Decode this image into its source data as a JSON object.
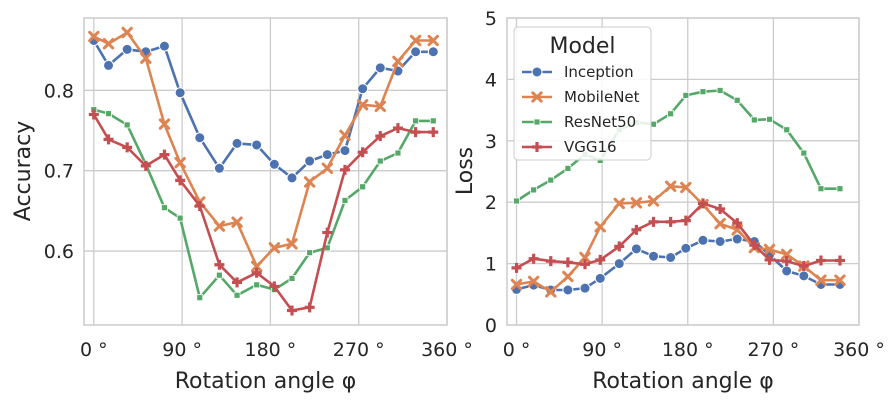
{
  "chart_data": [
    {
      "type": "line",
      "xlabel": "Rotation angle φ",
      "ylabel": "Accuracy",
      "xlim": [
        -10,
        360
      ],
      "ylim": [
        0.508,
        0.89
      ],
      "xticks": [
        0,
        90,
        180,
        270,
        360
      ],
      "xtick_labels": [
        "0 °",
        "90 °",
        "180 °",
        "270 °",
        "360 °"
      ],
      "yticks": [
        0.6,
        0.7,
        0.8
      ],
      "ytick_labels": [
        "0.6",
        "0.7",
        "0.8"
      ],
      "grid": true,
      "x": [
        0,
        15,
        34,
        53,
        72,
        88,
        108,
        128,
        146,
        166,
        184,
        202,
        220,
        238,
        256,
        274,
        292,
        310,
        328,
        346
      ],
      "series": [
        {
          "name": "Inception",
          "color": "#4c72b0",
          "marker": "circle",
          "values": [
            0.862,
            0.831,
            0.851,
            0.848,
            0.855,
            0.797,
            0.741,
            0.703,
            0.734,
            0.732,
            0.708,
            0.691,
            0.712,
            0.72,
            0.725,
            0.802,
            0.828,
            0.824,
            0.848,
            0.848
          ]
        },
        {
          "name": "MobileNet",
          "color": "#dd8452",
          "marker": "x",
          "values": [
            0.867,
            0.858,
            0.872,
            0.84,
            0.758,
            0.71,
            0.661,
            0.631,
            0.636,
            0.581,
            0.604,
            0.609,
            0.686,
            0.703,
            0.744,
            0.782,
            0.78,
            0.836,
            0.862,
            0.862
          ]
        },
        {
          "name": "ResNet50",
          "color": "#55a868",
          "marker": "square",
          "values": [
            0.776,
            0.771,
            0.757,
            0.708,
            0.654,
            0.641,
            0.542,
            0.57,
            0.545,
            0.558,
            0.552,
            0.566,
            0.598,
            0.604,
            0.663,
            0.68,
            0.712,
            0.722,
            0.762,
            0.762
          ]
        },
        {
          "name": "VGG16",
          "color": "#c44e52",
          "marker": "plus",
          "values": [
            0.77,
            0.739,
            0.729,
            0.706,
            0.72,
            0.688,
            0.656,
            0.583,
            0.561,
            0.573,
            0.556,
            0.526,
            0.53,
            0.623,
            0.701,
            0.723,
            0.743,
            0.753,
            0.748,
            0.748
          ]
        }
      ]
    },
    {
      "type": "line",
      "xlabel": "Rotation angle φ",
      "ylabel": "Loss",
      "xlim": [
        -10,
        360
      ],
      "ylim": [
        0,
        5
      ],
      "xticks": [
        0,
        90,
        180,
        270,
        360
      ],
      "xtick_labels": [
        "0 °",
        "90 °",
        "180 °",
        "270 °",
        "360 °"
      ],
      "yticks": [
        0,
        1,
        2,
        3,
        4,
        5
      ],
      "ytick_labels": [
        "0",
        "1",
        "2",
        "3",
        "4",
        "5"
      ],
      "grid": true,
      "legend": {
        "title": "Model",
        "placement": "upper-left"
      },
      "x": [
        0,
        18,
        36,
        54,
        72,
        88,
        108,
        126,
        144,
        162,
        178,
        196,
        214,
        232,
        250,
        266,
        284,
        302,
        320,
        340
      ],
      "series": [
        {
          "name": "Inception",
          "color": "#4c72b0",
          "marker": "circle",
          "values": [
            0.58,
            0.65,
            0.57,
            0.57,
            0.6,
            0.76,
            1.0,
            1.24,
            1.12,
            1.1,
            1.25,
            1.38,
            1.36,
            1.4,
            1.36,
            1.14,
            0.88,
            0.8,
            0.66,
            0.66
          ]
        },
        {
          "name": "MobileNet",
          "color": "#dd8452",
          "marker": "x",
          "values": [
            0.66,
            0.71,
            0.54,
            0.79,
            1.1,
            1.6,
            1.98,
            1.99,
            2.02,
            2.26,
            2.24,
            1.96,
            1.65,
            1.55,
            1.26,
            1.23,
            1.15,
            0.96,
            0.73,
            0.73
          ]
        },
        {
          "name": "ResNet50",
          "color": "#55a868",
          "marker": "square",
          "values": [
            2.02,
            2.2,
            2.36,
            2.55,
            2.78,
            2.68,
            3.18,
            3.3,
            3.27,
            3.44,
            3.74,
            3.8,
            3.82,
            3.66,
            3.34,
            3.35,
            3.18,
            2.8,
            2.22,
            2.22
          ]
        },
        {
          "name": "VGG16",
          "color": "#c44e52",
          "marker": "plus",
          "values": [
            0.93,
            1.08,
            1.04,
            1.02,
            0.99,
            1.06,
            1.28,
            1.55,
            1.68,
            1.68,
            1.7,
            1.98,
            1.89,
            1.66,
            1.3,
            1.06,
            1.04,
            0.96,
            1.05,
            1.05
          ]
        }
      ]
    }
  ]
}
